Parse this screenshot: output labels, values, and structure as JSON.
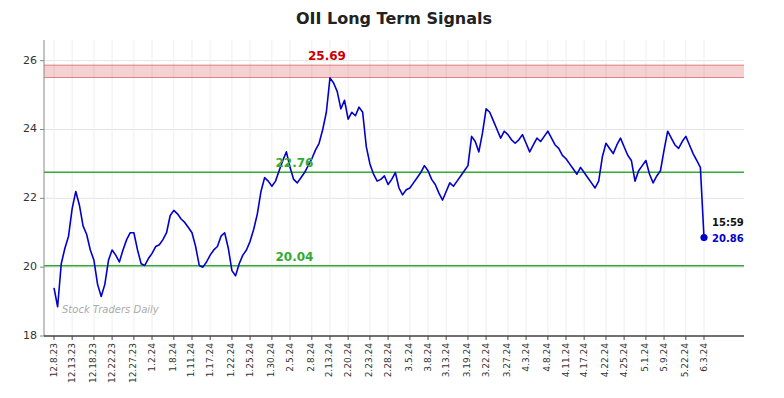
{
  "chart_data": {
    "type": "line",
    "title": "OII Long Term Signals",
    "categories": [
      "12.8.23",
      null,
      null,
      null,
      null,
      "12.13.23",
      null,
      null,
      null,
      null,
      null,
      "12.18.23",
      null,
      null,
      null,
      null,
      "12.22.23",
      null,
      null,
      null,
      null,
      null,
      "12.27.23",
      null,
      null,
      null,
      null,
      "1.2.24",
      null,
      null,
      null,
      null,
      null,
      "1.8.24",
      null,
      null,
      null,
      null,
      "1.11.24",
      null,
      null,
      null,
      null,
      "1.17.24",
      null,
      null,
      null,
      null,
      null,
      "1.22.24",
      null,
      null,
      null,
      null,
      "1.25.24",
      null,
      null,
      null,
      null,
      null,
      "1.30.24",
      null,
      null,
      null,
      null,
      "2.5.24",
      null,
      null,
      null,
      null,
      null,
      "2.8.24",
      null,
      null,
      null,
      null,
      "2.13.24",
      null,
      null,
      null,
      null,
      "2.20.24",
      null,
      null,
      null,
      null,
      null,
      "2.23.24",
      null,
      null,
      null,
      null,
      "2.28.24",
      null,
      null,
      null,
      null,
      null,
      "3.5.24",
      null,
      null,
      null,
      null,
      "3.8.24",
      null,
      null,
      null,
      null,
      "3.13.24",
      null,
      null,
      null,
      null,
      null,
      "3.19.24",
      null,
      null,
      null,
      null,
      "3.22.24",
      null,
      null,
      null,
      null,
      null,
      "3.27.24",
      null,
      null,
      null,
      null,
      "4.3.24",
      null,
      null,
      null,
      null,
      null,
      "4.8.24",
      null,
      null,
      null,
      null,
      "4.11.24",
      null,
      null,
      null,
      null,
      "4.17.24",
      null,
      null,
      null,
      null,
      null,
      "4.22.24",
      null,
      null,
      null,
      null,
      "4.25.24",
      null,
      null,
      null,
      null,
      null,
      "5.1.24",
      null,
      null,
      null,
      null,
      "5.9.24",
      null,
      null,
      null,
      null,
      null,
      "5.22.24",
      null,
      null,
      null,
      null,
      "6.3.24"
    ],
    "values": [
      19.4,
      18.85,
      20.1,
      20.55,
      20.9,
      21.7,
      22.2,
      21.8,
      21.2,
      20.95,
      20.5,
      20.2,
      19.5,
      19.15,
      19.5,
      20.2,
      20.5,
      20.35,
      20.15,
      20.5,
      20.8,
      21.0,
      21.0,
      20.5,
      20.1,
      20.05,
      20.25,
      20.4,
      20.6,
      20.65,
      20.8,
      21.0,
      21.5,
      21.65,
      21.55,
      21.4,
      21.3,
      21.15,
      21.0,
      20.6,
      20.05,
      20.0,
      20.15,
      20.35,
      20.5,
      20.6,
      20.9,
      21.0,
      20.55,
      19.9,
      19.75,
      20.1,
      20.35,
      20.5,
      20.75,
      21.1,
      21.55,
      22.2,
      22.6,
      22.5,
      22.35,
      22.5,
      22.8,
      23.1,
      23.35,
      22.9,
      22.55,
      22.45,
      22.6,
      22.75,
      22.95,
      23.15,
      23.4,
      23.6,
      24.0,
      24.5,
      25.5,
      25.35,
      25.1,
      24.6,
      24.85,
      24.3,
      24.5,
      24.4,
      24.65,
      24.5,
      23.5,
      23.0,
      22.7,
      22.5,
      22.55,
      22.65,
      22.4,
      22.55,
      22.75,
      22.3,
      22.1,
      22.25,
      22.3,
      22.45,
      22.6,
      22.75,
      22.95,
      22.8,
      22.55,
      22.4,
      22.15,
      21.95,
      22.2,
      22.45,
      22.35,
      22.5,
      22.65,
      22.8,
      22.95,
      23.8,
      23.65,
      23.35,
      23.9,
      24.6,
      24.5,
      24.25,
      24.0,
      23.75,
      23.95,
      23.85,
      23.7,
      23.6,
      23.7,
      23.85,
      23.6,
      23.35,
      23.55,
      23.75,
      23.65,
      23.8,
      23.95,
      23.75,
      23.55,
      23.45,
      23.25,
      23.15,
      23.0,
      22.85,
      22.7,
      22.9,
      22.75,
      22.6,
      22.45,
      22.3,
      22.5,
      23.2,
      23.6,
      23.45,
      23.3,
      23.55,
      23.75,
      23.5,
      23.25,
      23.1,
      22.5,
      22.8,
      22.95,
      23.1,
      22.7,
      22.45,
      22.65,
      22.8,
      23.4,
      23.95,
      23.75,
      23.55,
      23.45,
      23.65,
      23.8,
      23.55,
      23.3,
      23.1,
      22.9,
      20.86
    ],
    "color": "#0000cc",
    "ylim": [
      18.0,
      26.6
    ],
    "yticks": [
      18,
      20,
      22,
      24,
      26
    ],
    "grid": true,
    "bands": [
      {
        "value": 25.69,
        "from": 25.51,
        "to": 25.87,
        "label": "25.69",
        "color": "#cc0000"
      }
    ],
    "reference_lines": [
      {
        "value": 22.76,
        "label": "22.76",
        "color": "#33aa33"
      },
      {
        "value": 20.04,
        "label": "20.04",
        "color": "#33aa33"
      }
    ],
    "last_label": "15:59",
    "watermark": "Stock Traders Daily"
  }
}
